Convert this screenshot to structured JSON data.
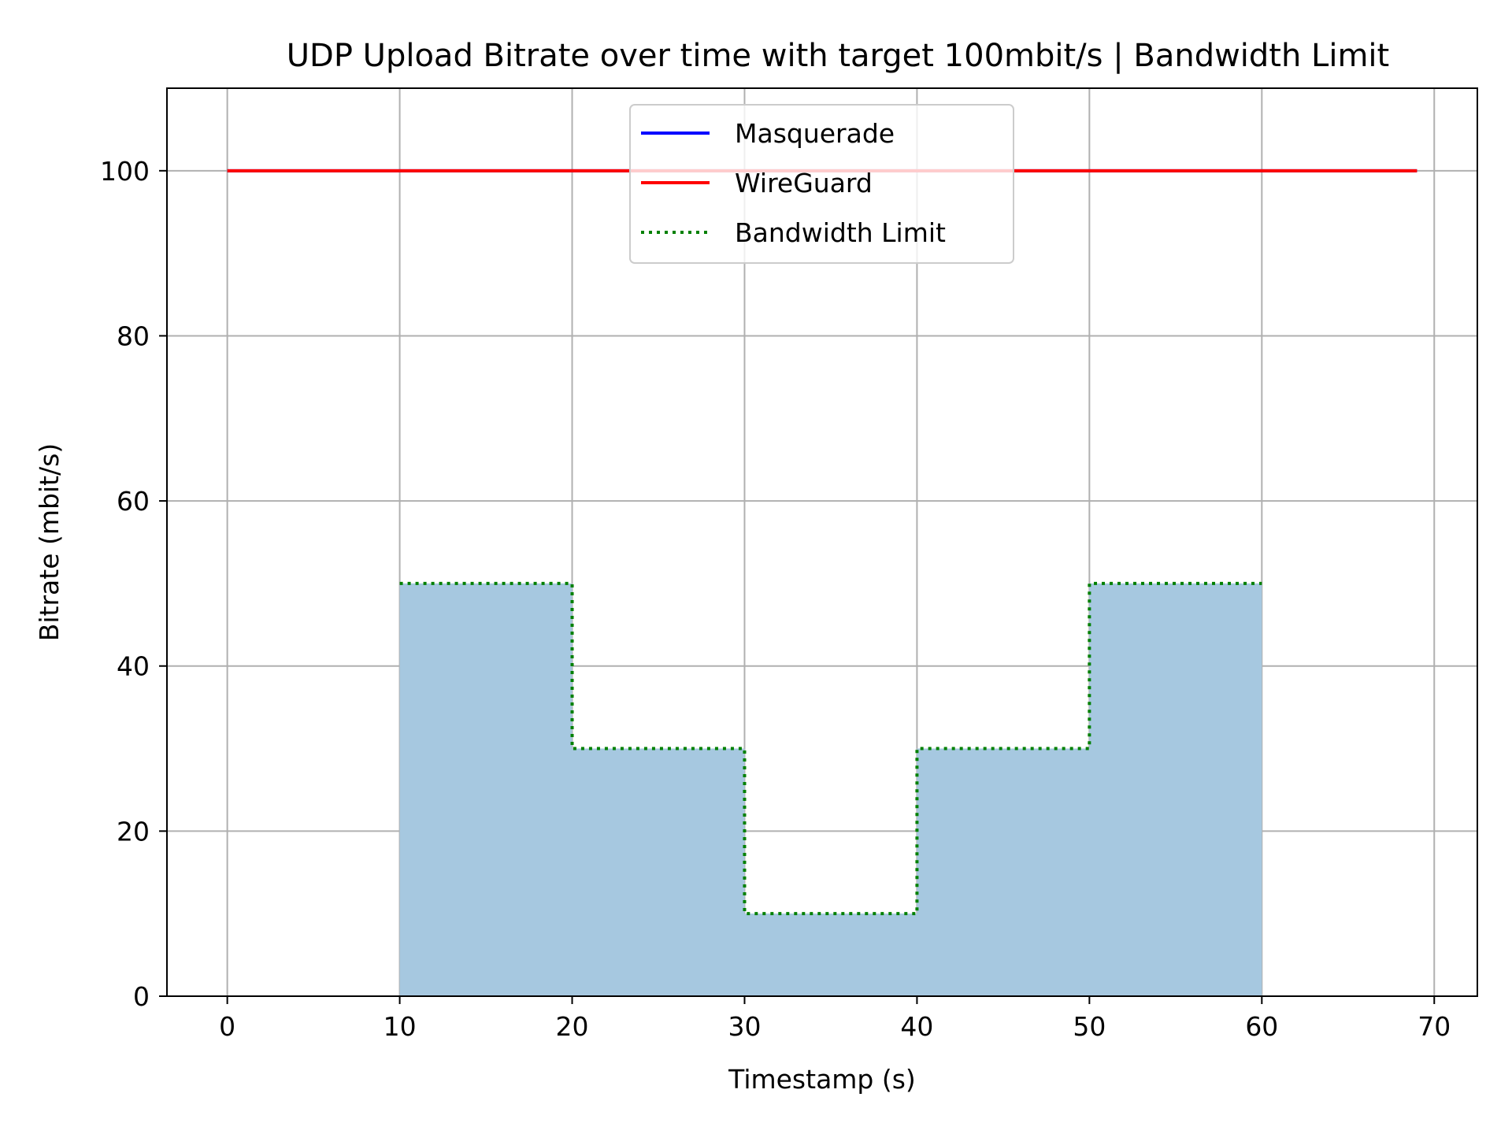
{
  "chart_data": {
    "type": "line",
    "title": "UDP Upload Bitrate over time with target 100mbit/s | Bandwidth Limit",
    "xlabel": "Timestamp (s)",
    "ylabel": "Bitrate (mbit/s)",
    "xlim": [
      -3.5,
      72.5
    ],
    "ylim": [
      0,
      110
    ],
    "xticks": [
      0,
      10,
      20,
      30,
      40,
      50,
      60,
      70
    ],
    "yticks": [
      0,
      20,
      40,
      60,
      80,
      100
    ],
    "xtick_labels": [
      "0",
      "10",
      "20",
      "30",
      "40",
      "50",
      "60",
      "70"
    ],
    "ytick_labels": [
      "0",
      "20",
      "40",
      "60",
      "80",
      "100"
    ],
    "grid": true,
    "legend_position": "upper center",
    "series": [
      {
        "name": "Masquerade",
        "style": "solid",
        "color": "#0000ff",
        "x": [
          0,
          69
        ],
        "y": [
          100,
          100
        ]
      },
      {
        "name": "WireGuard",
        "style": "solid",
        "color": "#ff0000",
        "x": [
          0,
          69
        ],
        "y": [
          100,
          100
        ]
      },
      {
        "name": "Bandwidth Limit",
        "style": "dotted",
        "color": "#008000",
        "x": [
          10,
          20,
          20,
          30,
          30,
          40,
          40,
          50,
          50,
          60
        ],
        "y": [
          50,
          50,
          30,
          30,
          10,
          10,
          30,
          30,
          50,
          50
        ]
      }
    ],
    "fill": {
      "color": "#a6c8e0",
      "x": [
        10,
        20,
        20,
        30,
        30,
        40,
        40,
        50,
        50,
        60
      ],
      "y": [
        50,
        50,
        30,
        30,
        10,
        10,
        30,
        30,
        50,
        50
      ]
    }
  }
}
